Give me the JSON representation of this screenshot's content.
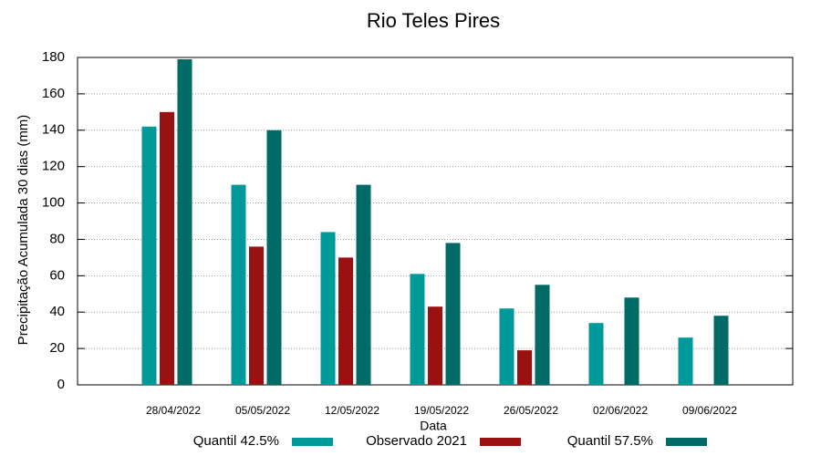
{
  "chart_data": {
    "type": "bar",
    "title": "Rio Teles Pires",
    "x_label": "Data",
    "y_label": "Precipitação Acumulada 30 dias (mm)",
    "categories": [
      "28/04/2022",
      "05/05/2022",
      "12/05/2022",
      "19/05/2022",
      "26/05/2022",
      "02/06/2022",
      "09/06/2022"
    ],
    "series": [
      {
        "name": "Quantil 42.5%",
        "color": "#009999",
        "values": [
          142,
          110,
          84,
          61,
          42,
          34,
          26
        ]
      },
      {
        "name": "Observado 2021",
        "color": "#991111",
        "values": [
          150,
          76,
          70,
          43,
          19,
          null,
          null
        ]
      },
      {
        "name": "Quantil 57.5%",
        "color": "#006a66",
        "values": [
          179,
          140,
          110,
          78,
          55,
          48,
          38
        ]
      }
    ],
    "ylim": [
      0,
      180
    ],
    "yticks": [
      0,
      20,
      40,
      60,
      80,
      100,
      120,
      140,
      160,
      180
    ],
    "grid": true
  }
}
